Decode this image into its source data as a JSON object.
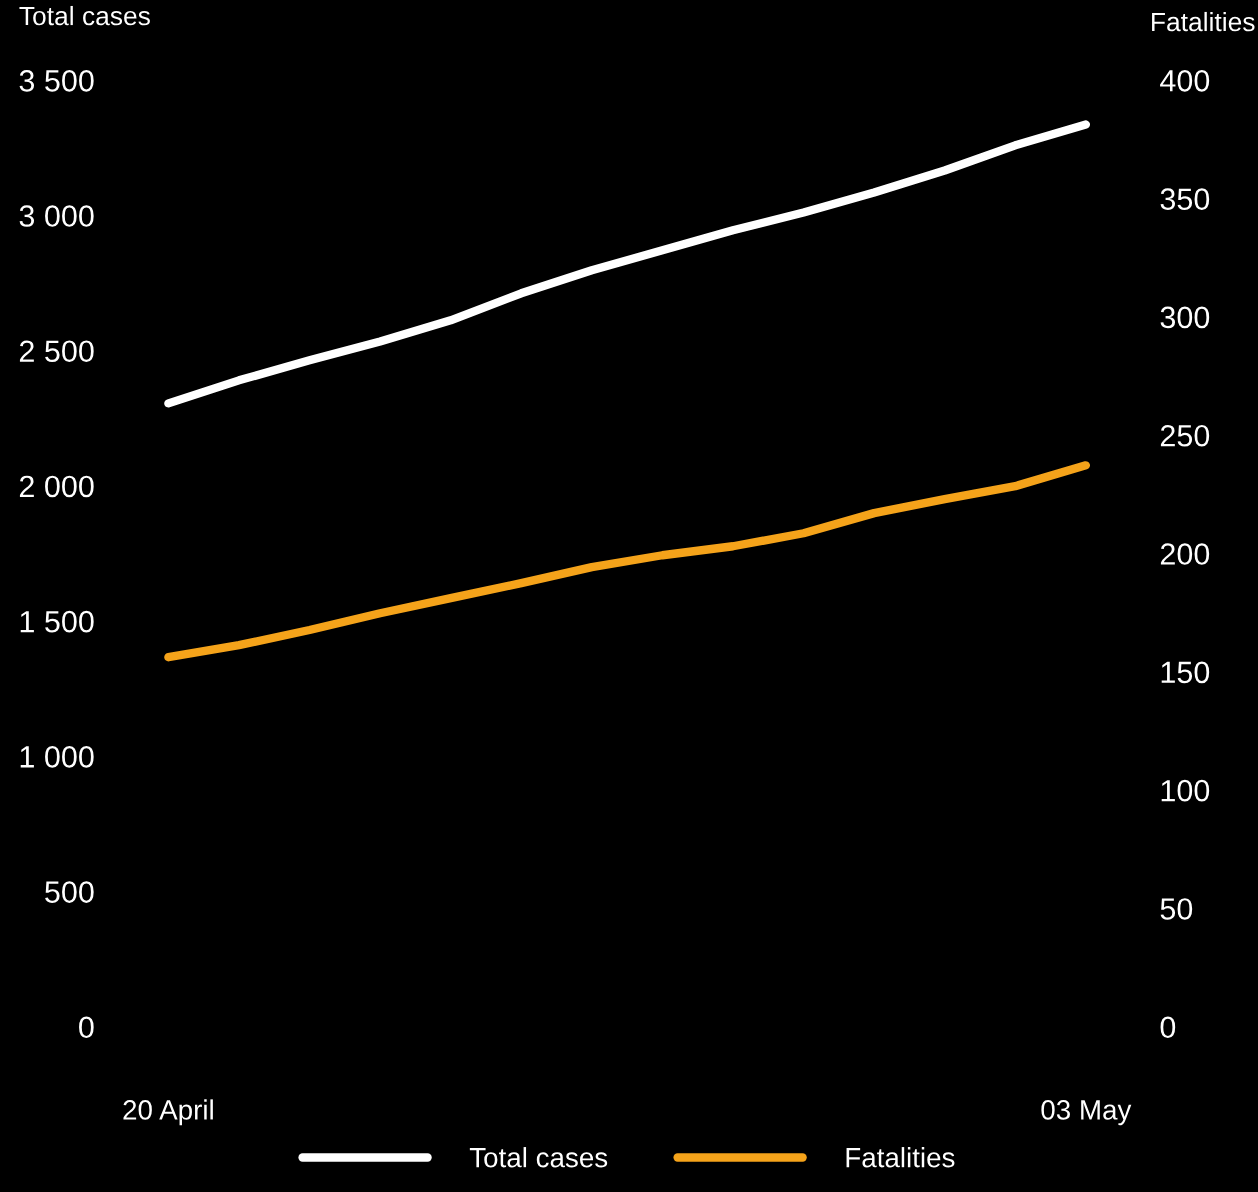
{
  "chart_data": {
    "type": "line",
    "categories": [
      "20 April",
      null,
      null,
      null,
      null,
      null,
      null,
      null,
      null,
      null,
      null,
      null,
      null,
      "03 May"
    ],
    "series": [
      {
        "name": "Total cases",
        "color": "#ffffff",
        "values": [
          2317,
          2402,
          2476,
          2546,
          2624,
          2724,
          2809,
          2883,
          2957,
          3023,
          3097,
          3178,
          3271,
          3348
        ]
      },
      {
        "name": "Fatalities",
        "color": "#f5a31a",
        "axis": "y2",
        "values": [
          157.5,
          162.6,
          169,
          176.1,
          182.5,
          188.8,
          195.6,
          200.6,
          204.4,
          209.9,
          218.4,
          224.3,
          229.8,
          238.6
        ]
      }
    ],
    "ylabel": "Total cases",
    "y2label": "Fatalities",
    "ylim": [
      0,
      3500
    ],
    "yticks": [
      0,
      500,
      {
        "value": 1000,
        "label": "1 000"
      },
      {
        "value": 1500,
        "label": "1 500"
      },
      {
        "value": 2000,
        "label": "2 000"
      },
      {
        "value": 2500,
        "label": "2 500"
      },
      {
        "value": 3000,
        "label": "3 000"
      },
      {
        "value": 3500,
        "label": "3 500"
      }
    ],
    "y2lim": [
      0,
      400
    ],
    "y2ticks": [
      0,
      50,
      100,
      150,
      200,
      250,
      300,
      350,
      400
    ],
    "grid": false,
    "legend": "bottom",
    "marker": "none",
    "line_style": "solid"
  }
}
